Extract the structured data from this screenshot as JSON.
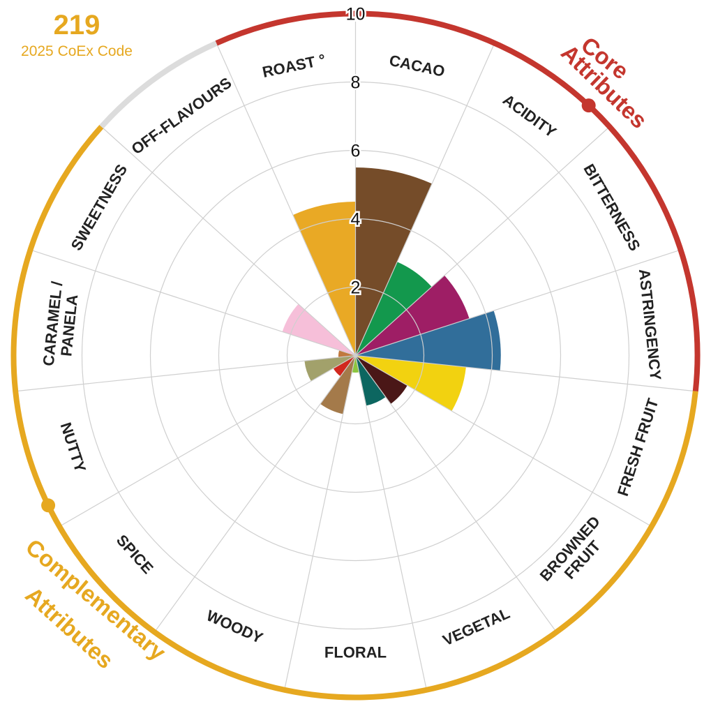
{
  "header": {
    "code_number": "219",
    "code_label": "2025 CoEx Code"
  },
  "groups": {
    "core": {
      "line1": "Core",
      "line2": "Attributes",
      "color": "#c4362e"
    },
    "complementary": {
      "line1": "Complementary",
      "line2": "Attributes",
      "color": "#e6a820"
    },
    "neutral_color": "#dcdcdc"
  },
  "chart_data": {
    "type": "polar-bar",
    "r_ticks": [
      2,
      4,
      6,
      8,
      10
    ],
    "r_max": 10,
    "categories": [
      {
        "label": "CACAO",
        "value": 5.5,
        "color": "#754c29",
        "group": "core"
      },
      {
        "label": "ACIDITY",
        "value": 3.0,
        "color": "#13984d",
        "group": "core"
      },
      {
        "label": "BITTERNESS",
        "value": 3.5,
        "color": "#9e1e65",
        "group": "core"
      },
      {
        "label": "ASTRINGENCY",
        "value": 4.25,
        "color": "#316e9a",
        "group": "core"
      },
      {
        "label": "FRESH FRUIT",
        "value": 3.25,
        "color": "#f2d210",
        "group": "complementary"
      },
      {
        "label": "BROWNED FRUIT",
        "value": 1.75,
        "color": "#4a1717",
        "group": "complementary"
      },
      {
        "label": "VEGETAL",
        "value": 1.5,
        "color": "#0c6660",
        "group": "complementary"
      },
      {
        "label": "FLORAL",
        "value": 0.5,
        "color": "#8cc63f",
        "group": "complementary"
      },
      {
        "label": "WOODY",
        "value": 1.75,
        "color": "#a47a4a",
        "group": "complementary"
      },
      {
        "label": "SPICE",
        "value": 0.75,
        "color": "#d1281e",
        "group": "complementary"
      },
      {
        "label": "NUTTY",
        "value": 1.5,
        "color": "#a2a16b",
        "group": "complementary"
      },
      {
        "label": "CARAMEL / PANELA",
        "value": 0.5,
        "color": "#c1783e",
        "group": "complementary"
      },
      {
        "label": "SWEETNESS",
        "value": 2.25,
        "color": "#f6bfd9",
        "group": "complementary"
      },
      {
        "label": "OFF-FLAVOURS",
        "value": 0,
        "color": "#999999",
        "group": "neutral"
      },
      {
        "label": "ROAST °",
        "value": 4.5,
        "color": "#e9a925",
        "group": "core"
      }
    ]
  }
}
